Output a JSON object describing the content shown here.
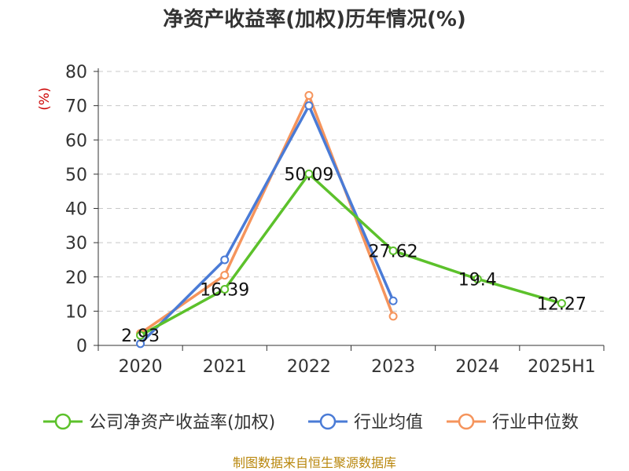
{
  "title": "净资产收益率(加权)历年情况(%)",
  "source": "制图数据来自恒生聚源数据库",
  "chart_data": {
    "type": "line",
    "title": "净资产收益率(加权)历年情况(%)",
    "ylabel": "(%)",
    "xlabel": "",
    "categories": [
      "2020",
      "2021",
      "2022",
      "2023",
      "2024",
      "2025H1"
    ],
    "ylim": [
      0,
      80
    ],
    "yticks": [
      0,
      10,
      20,
      30,
      40,
      50,
      60,
      70,
      80
    ],
    "grid": true,
    "legend_position": "bottom",
    "series": [
      {
        "name": "公司净资产收益率(加权)",
        "color": "#5cc12b",
        "values": [
          2.93,
          16.39,
          50.09,
          27.62,
          19.4,
          12.27
        ],
        "labels": [
          "2.93",
          "16.39",
          "50.09",
          "27.62",
          "19.4",
          "12.27"
        ]
      },
      {
        "name": "行业均值",
        "color": "#4a7bd6",
        "values": [
          0.5,
          25,
          70,
          13,
          null,
          null
        ]
      },
      {
        "name": "行业中位数",
        "color": "#f5945c",
        "values": [
          3.5,
          20.5,
          73,
          8.5,
          null,
          null
        ]
      }
    ]
  }
}
